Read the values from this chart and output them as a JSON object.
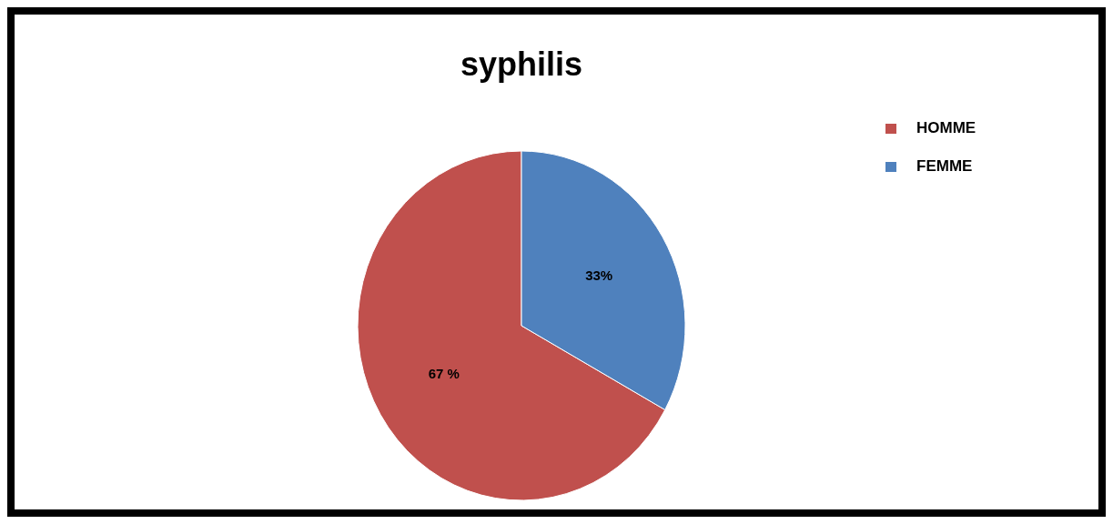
{
  "chart_data": {
    "type": "pie",
    "title": "syphilis",
    "categories": [
      "HOMME",
      "FEMME"
    ],
    "values": [
      67,
      33
    ],
    "colors": [
      "#c0504d",
      "#4f81bd"
    ],
    "value_labels": [
      "67 %",
      "33%"
    ],
    "legend": "top right"
  }
}
